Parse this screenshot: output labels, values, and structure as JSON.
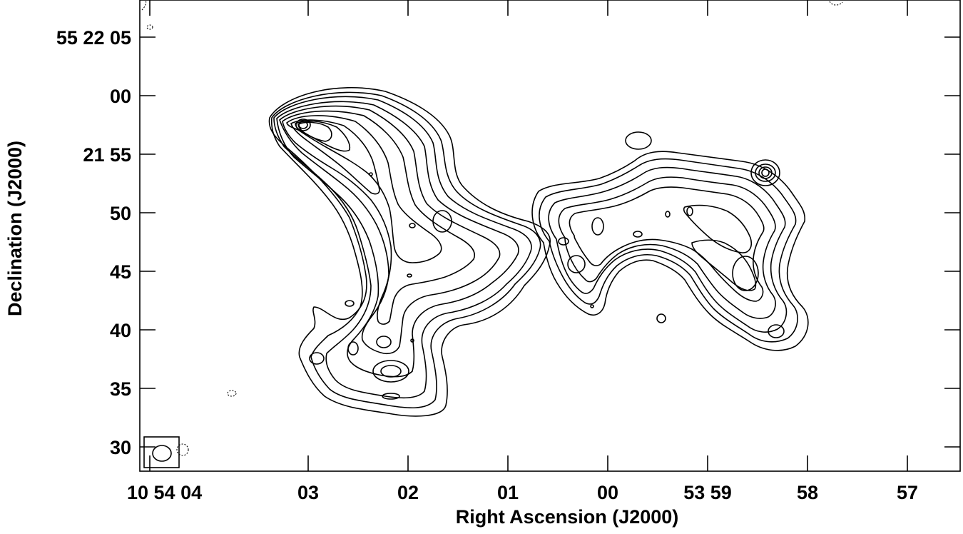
{
  "chart_data": {
    "type": "contour",
    "xlabel": "Right Ascension (J2000)",
    "ylabel": "Declination (J2000)",
    "x_ticks": [
      {
        "label": "10 54 04",
        "value": "10h54m04s"
      },
      {
        "label": "03",
        "value": "10h54m03s"
      },
      {
        "label": "02",
        "value": "10h54m02s"
      },
      {
        "label": "01",
        "value": "10h54m01s"
      },
      {
        "label": "00",
        "value": "10h54m00s"
      },
      {
        "label": "53 59",
        "value": "10h53m59s"
      },
      {
        "label": "58",
        "value": "10h53m58s"
      },
      {
        "label": "57",
        "value": "10h53m57s"
      }
    ],
    "y_ticks": [
      {
        "label": "55 22 05",
        "value": "+55d22m05s"
      },
      {
        "label": "00",
        "value": "+55d22m00s"
      },
      {
        "label": "21 55",
        "value": "+55d21m55s"
      },
      {
        "label": "50",
        "value": "+55d21m50s"
      },
      {
        "label": "45",
        "value": "+55d21m45s"
      },
      {
        "label": "40",
        "value": "+55d21m40s"
      },
      {
        "label": "35",
        "value": "+55d21m35s"
      },
      {
        "label": "30",
        "value": "+55d21m30s"
      }
    ],
    "axis_orientation": "RA increases to the left",
    "contour_style": "solid positive contours, dashed negative contours",
    "features": {
      "east_lobe_peak": {
        "ra": "10h54m03.0s",
        "dec": "+55d21m57.5s"
      },
      "west_hotspot": {
        "ra": "10h53m58.3s",
        "dec": "+55d21m54.5s"
      },
      "southwest_knot": {
        "ra": "10h53m58.2s",
        "dec": "+55d21m40s"
      },
      "beam_location": "bottom-left corner"
    }
  }
}
